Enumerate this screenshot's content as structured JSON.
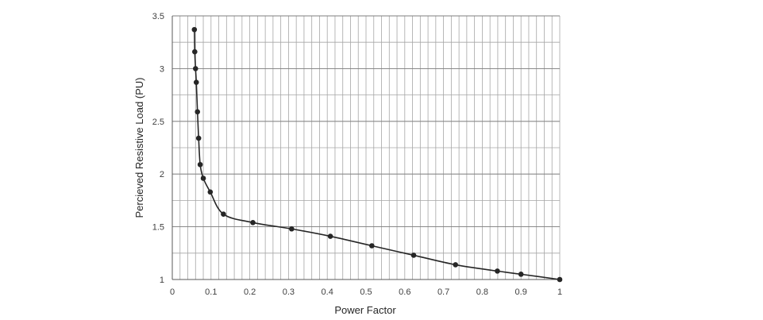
{
  "chart_data": {
    "type": "line",
    "title": "",
    "xlabel": "Power Factor",
    "ylabel": "Percieved Resistive Load (PU)",
    "xlim": [
      0,
      1
    ],
    "ylim": [
      1,
      3.5
    ],
    "xticks": [
      0,
      0.1,
      0.2,
      0.3,
      0.4,
      0.5,
      0.6,
      0.7,
      0.8,
      0.9,
      1
    ],
    "yticks": [
      1,
      1.5,
      2,
      2.5,
      3,
      3.5
    ],
    "xtick_labels": [
      "0",
      "0.1",
      "0.2",
      "0.3",
      "0.4",
      "0.5",
      "0.6",
      "0.7",
      "0.8",
      "0.9",
      "1"
    ],
    "ytick_labels": [
      "1",
      "1.5",
      "2",
      "2.5",
      "3",
      "3.5"
    ],
    "grid": true,
    "minor_x_step": 0.02,
    "minor_y_step": 0.25,
    "legend": "none",
    "line_color": "#262626",
    "grid_color": "#a6a6a6",
    "series": [
      {
        "x": [
          0.057,
          0.058,
          0.06,
          0.062,
          0.065,
          0.068,
          0.072,
          0.08,
          0.098,
          0.132,
          0.208,
          0.308,
          0.408,
          0.515,
          0.623,
          0.731,
          0.839,
          0.9,
          1.0
        ],
        "y": [
          3.37,
          3.16,
          3.0,
          2.87,
          2.59,
          2.34,
          2.09,
          1.96,
          1.83,
          1.62,
          1.54,
          1.48,
          1.41,
          1.32,
          1.23,
          1.14,
          1.08,
          1.05,
          1.0
        ]
      }
    ]
  }
}
